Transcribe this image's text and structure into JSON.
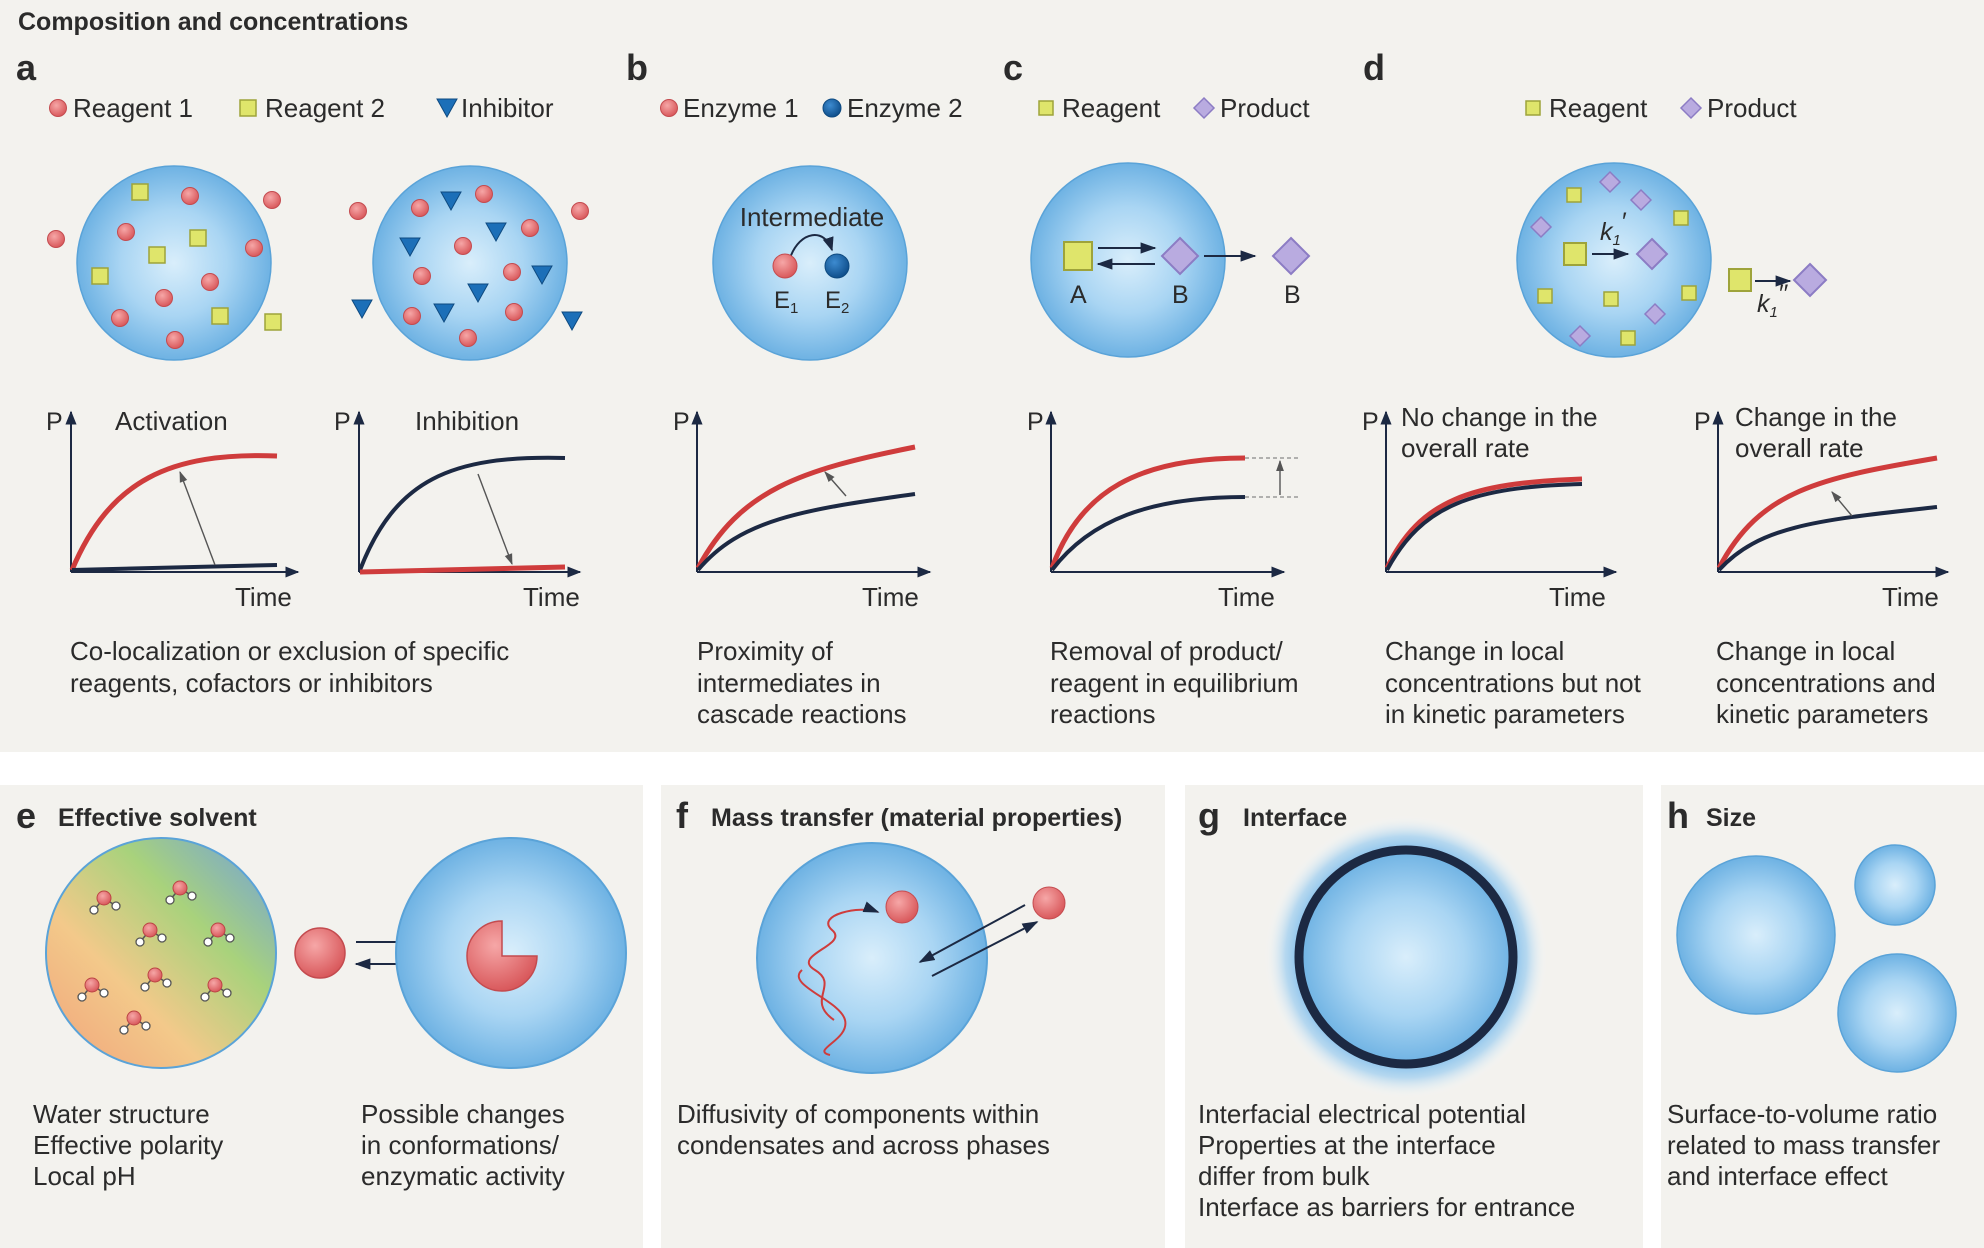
{
  "section_title": "Composition and concentrations",
  "colors": {
    "panel_bg": "#f3f2ee",
    "droplet": "#7fbde8",
    "red_particle": "#e06868",
    "yellow_square": "#dfe56b",
    "purple_diamond": "#b7a8dd",
    "blue_particle": "#1c63a6",
    "navy_curve": "#1c2943",
    "red_curve": "#cf3c3c"
  },
  "panels": {
    "a": {
      "letter": "a",
      "legend": [
        "Reagent 1",
        "Reagent 2",
        "Inhibitor"
      ],
      "graph1": {
        "y": "P",
        "title": "Activation",
        "x": "Time"
      },
      "graph2": {
        "y": "P",
        "title": "Inhibition",
        "x": "Time"
      },
      "caption": [
        "Co-localization or exclusion of specific",
        "reagents, cofactors or inhibitors"
      ]
    },
    "b": {
      "letter": "b",
      "legend": [
        "Enzyme 1",
        "Enzyme 2"
      ],
      "intermediate": "Intermediate",
      "e1": "E",
      "e1_sub": "1",
      "e2": "E",
      "e2_sub": "2",
      "graph": {
        "y": "P",
        "x": "Time"
      },
      "caption": [
        "Proximity of",
        "intermediates in",
        "cascade reactions"
      ]
    },
    "c": {
      "letter": "c",
      "legend": [
        "Reagent",
        "Product"
      ],
      "label_a": "A",
      "label_b": "B",
      "label_b_out": "B",
      "graph": {
        "y": "P",
        "x": "Time"
      },
      "caption": [
        "Removal of product/",
        "reagent in equilibrium",
        "reactions"
      ]
    },
    "d": {
      "letter": "d",
      "legend": [
        "Reagent",
        "Product"
      ],
      "k_in": "k",
      "k_in_sub": "1",
      "k_in_prime": "′",
      "k_out": "k",
      "k_out_sub": "1",
      "k_out_prime": "′′",
      "graph1": {
        "y": "P",
        "title": [
          "No change in the",
          "overall rate"
        ],
        "x": "Time"
      },
      "graph2": {
        "y": "P",
        "title": [
          "Change in the",
          "overall rate"
        ],
        "x": "Time"
      },
      "caption1": [
        "Change in local",
        "concentrations but not",
        "in kinetic parameters"
      ],
      "caption2": [
        "Change in local",
        "concentrations and",
        "kinetic parameters"
      ]
    },
    "e": {
      "letter": "e",
      "title": "Effective solvent",
      "caption_left": [
        "Water structure",
        "Effective polarity",
        "Local pH"
      ],
      "caption_right": [
        "Possible changes",
        "in conformations/",
        "enzymatic activity"
      ]
    },
    "f": {
      "letter": "f",
      "title": "Mass transfer (material properties)",
      "caption": [
        "Diffusivity of components within",
        "condensates and across phases"
      ]
    },
    "g": {
      "letter": "g",
      "title": "Interface",
      "caption": [
        "Interfacial electrical potential",
        "Properties at the interface",
        "differ from bulk",
        "Interface as barriers for entrance"
      ]
    },
    "h": {
      "letter": "h",
      "title": "Size",
      "caption": [
        "Surface-to-volume ratio",
        "related to mass transfer",
        "and interface effect"
      ]
    }
  }
}
